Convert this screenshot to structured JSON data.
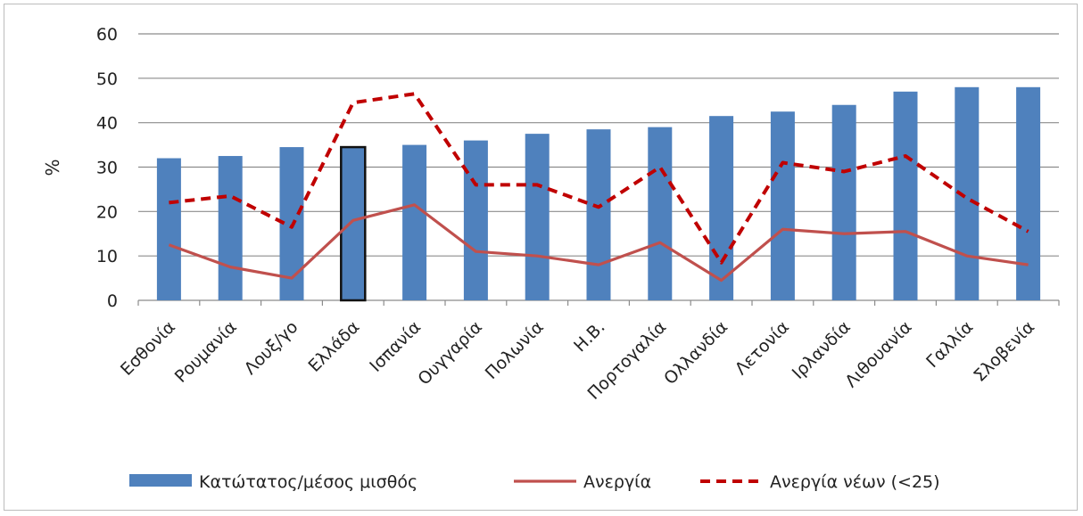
{
  "chart_data": {
    "type": "bar",
    "categories": [
      "Εσθονία",
      "Ρουμανία",
      "Λουξ/γο",
      "Ελλάδα",
      "Ισπανία",
      "Ουγγαρία",
      "Πολωνία",
      "Η.Β.",
      "Πορτογαλία",
      "Ολλανδία",
      "Λετονία",
      "Ιρλανδία",
      "Λιθουανία",
      "Γαλλία",
      "Σλοβενία"
    ],
    "ylabel": "%",
    "ylim": [
      0,
      60
    ],
    "yticks": [
      0,
      10,
      20,
      30,
      40,
      50,
      60
    ],
    "grid": true,
    "legend_position": "bottom",
    "highlighted_category": "Ελλάδα",
    "series": [
      {
        "name": "Κατώτατος/μέσος μισθός",
        "kind": "bar",
        "color": "#4f81bd",
        "values": [
          32,
          32.5,
          34.5,
          34.5,
          35,
          36,
          37.5,
          38.5,
          39,
          41.5,
          42.5,
          44,
          47,
          48,
          48
        ]
      },
      {
        "name": "Ανεργία",
        "kind": "line",
        "style": "solid",
        "color": "#c0504d",
        "values": [
          12.5,
          7.5,
          5,
          18,
          21.5,
          11,
          10,
          8,
          13,
          4.5,
          16,
          15,
          15.5,
          10,
          8
        ]
      },
      {
        "name": "Ανεργία νέων (<25)",
        "kind": "line",
        "style": "dashed",
        "color": "#c00000",
        "values": [
          22,
          23.5,
          16.5,
          44.5,
          46.5,
          26,
          26,
          21,
          30,
          8.5,
          31,
          29,
          32.5,
          23,
          15.5
        ]
      }
    ]
  }
}
